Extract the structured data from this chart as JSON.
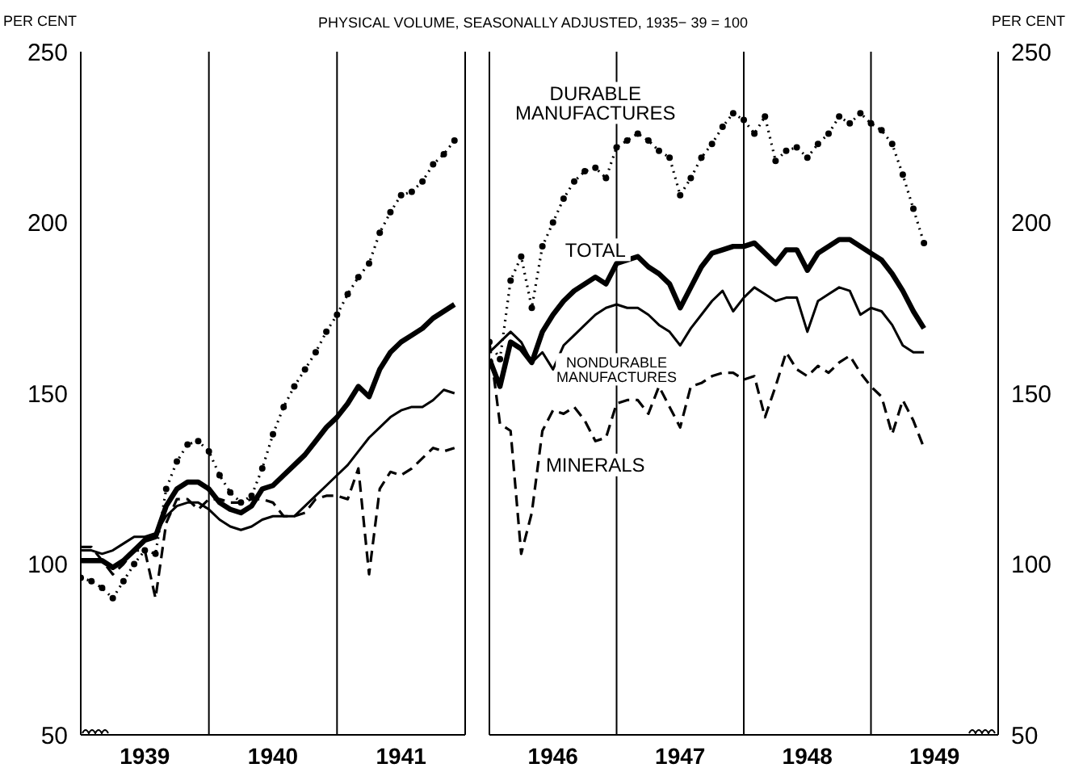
{
  "chart_data": [
    {
      "type": "line",
      "title": "PHYSICAL VOLUME, SEASONALLY ADJUSTED, 1935− 39 = 100",
      "ylabel": "PER CENT",
      "x": [
        "1939-01",
        "1939-02",
        "1939-03",
        "1939-04",
        "1939-05",
        "1939-06",
        "1939-07",
        "1939-08",
        "1939-09",
        "1939-10",
        "1939-11",
        "1939-12",
        "1940-01",
        "1940-02",
        "1940-03",
        "1940-04",
        "1940-05",
        "1940-06",
        "1940-07",
        "1940-08",
        "1940-09",
        "1940-10",
        "1940-11",
        "1940-12",
        "1941-01",
        "1941-02",
        "1941-03",
        "1941-04",
        "1941-05",
        "1941-06",
        "1941-07",
        "1941-08",
        "1941-09",
        "1941-10",
        "1941-11",
        "1941-12"
      ],
      "xlim": [
        "1939-01",
        "1942-01"
      ],
      "xticks": [
        {
          "value": "1939-07",
          "label": "1939"
        },
        {
          "value": "1940-01",
          "label": null
        },
        {
          "value": "1940-07",
          "label": "1940"
        },
        {
          "value": "1941-01",
          "label": null
        },
        {
          "value": "1941-07",
          "label": "1941"
        }
      ],
      "ylim": [
        50,
        250
      ],
      "yticks": [
        50,
        100,
        150,
        200,
        250
      ],
      "grid": true,
      "series": [
        {
          "color": "#000000",
          "line_style": "dotted",
          "marker": "circle",
          "values": [
            96,
            95,
            93,
            90,
            95,
            100,
            104,
            103,
            122,
            130,
            135,
            136,
            133,
            126,
            121,
            118,
            120,
            128,
            138,
            146,
            152,
            157,
            162,
            168,
            173,
            179,
            184,
            188,
            197,
            203,
            208,
            209,
            212,
            217,
            220,
            224
          ]
        },
        {
          "color": "#000000",
          "line_style": "solid",
          "marker": "none",
          "values": [
            101,
            101,
            101,
            99,
            101,
            104,
            107,
            108,
            117,
            122,
            124,
            124,
            122,
            118,
            116,
            115,
            117,
            122,
            123,
            126,
            129,
            132,
            136,
            140,
            143,
            147,
            152,
            149,
            157,
            162,
            165,
            167,
            169,
            172,
            174,
            176
          ]
        },
        {
          "color": "#000000",
          "line_style": "solid",
          "marker": "none",
          "values": [
            104,
            104,
            103,
            104,
            106,
            108,
            108,
            109,
            114,
            117,
            118,
            118,
            116,
            113,
            111,
            110,
            111,
            113,
            114,
            114,
            114,
            117,
            120,
            123,
            126,
            129,
            133,
            137,
            140,
            143,
            145,
            146,
            146,
            148,
            151,
            150
          ]
        },
        {
          "color": "#000000",
          "line_style": "dashed",
          "marker": "none",
          "values": [
            105,
            105,
            101,
            97,
            100,
            104,
            104,
            90,
            112,
            119,
            119,
            116,
            119,
            119,
            118,
            118,
            119,
            119,
            118,
            114,
            114,
            115,
            119,
            120,
            120,
            119,
            128,
            97,
            122,
            127,
            126,
            128,
            131,
            134,
            133,
            134
          ]
        }
      ]
    },
    {
      "type": "line",
      "y2label": "PER CENT",
      "x": [
        "1946-01",
        "1946-02",
        "1946-03",
        "1946-04",
        "1946-05",
        "1946-06",
        "1946-07",
        "1946-08",
        "1946-09",
        "1946-10",
        "1946-11",
        "1946-12",
        "1947-01",
        "1947-02",
        "1947-03",
        "1947-04",
        "1947-05",
        "1947-06",
        "1947-07",
        "1947-08",
        "1947-09",
        "1947-10",
        "1947-11",
        "1947-12",
        "1948-01",
        "1948-02",
        "1948-03",
        "1948-04",
        "1948-05",
        "1948-06",
        "1948-07",
        "1948-08",
        "1948-09",
        "1948-10",
        "1948-11",
        "1948-12",
        "1949-01",
        "1949-02",
        "1949-03",
        "1949-04",
        "1949-05",
        "1949-06"
      ],
      "xlim": [
        "1946-01",
        "1950-01"
      ],
      "xticks": [
        {
          "value": "1946-07",
          "label": "1946"
        },
        {
          "value": "1947-01",
          "label": null
        },
        {
          "value": "1947-07",
          "label": "1947"
        },
        {
          "value": "1948-01",
          "label": null
        },
        {
          "value": "1948-07",
          "label": "1948"
        },
        {
          "value": "1949-01",
          "label": null
        },
        {
          "value": "1949-07",
          "label": "1949"
        }
      ],
      "y2lim": [
        50,
        250
      ],
      "y2ticks": [
        50,
        100,
        150,
        200,
        250
      ],
      "grid": true,
      "series": [
        {
          "name": "DURABLE MANUFACTURES",
          "axis": "y2",
          "color": "#000000",
          "line_style": "dotted",
          "marker": "circle",
          "values": [
            165,
            160,
            183,
            190,
            175,
            193,
            200,
            207,
            212,
            215,
            216,
            213,
            222,
            224,
            226,
            224,
            221,
            219,
            208,
            213,
            219,
            223,
            228,
            232,
            230,
            226,
            231,
            218,
            221,
            222,
            219,
            223,
            226,
            231,
            229,
            232,
            229,
            227,
            223,
            214,
            204,
            194
          ]
        },
        {
          "name": "TOTAL",
          "axis": "y2",
          "color": "#000000",
          "line_style": "solid",
          "marker": "none",
          "values": [
            160,
            152,
            165,
            163,
            159,
            168,
            173,
            177,
            180,
            182,
            184,
            182,
            188,
            189,
            190,
            187,
            185,
            182,
            175,
            181,
            187,
            191,
            192,
            193,
            193,
            194,
            191,
            188,
            192,
            192,
            186,
            191,
            193,
            195,
            195,
            193,
            191,
            189,
            185,
            180,
            174,
            169
          ]
        },
        {
          "name": "NONDURABLE MANUFACTURES",
          "axis": "y2",
          "color": "#000000",
          "line_style": "solid",
          "marker": "none",
          "values": [
            162,
            165,
            168,
            165,
            159,
            162,
            157,
            164,
            167,
            170,
            173,
            175,
            176,
            175,
            175,
            173,
            170,
            168,
            164,
            169,
            173,
            177,
            180,
            174,
            178,
            181,
            179,
            177,
            178,
            178,
            168,
            177,
            179,
            181,
            180,
            173,
            175,
            174,
            170,
            164,
            162,
            162
          ]
        },
        {
          "name": "MINERALS",
          "axis": "y2",
          "color": "#000000",
          "line_style": "dashed",
          "marker": "none",
          "values": [
            165,
            141,
            139,
            103,
            115,
            139,
            145,
            144,
            146,
            142,
            136,
            137,
            147,
            148,
            148,
            144,
            152,
            146,
            140,
            152,
            153,
            155,
            156,
            156,
            154,
            155,
            143,
            152,
            162,
            157,
            155,
            158,
            156,
            159,
            161,
            156,
            152,
            149,
            138,
            148,
            142,
            134
          ]
        }
      ]
    }
  ]
}
